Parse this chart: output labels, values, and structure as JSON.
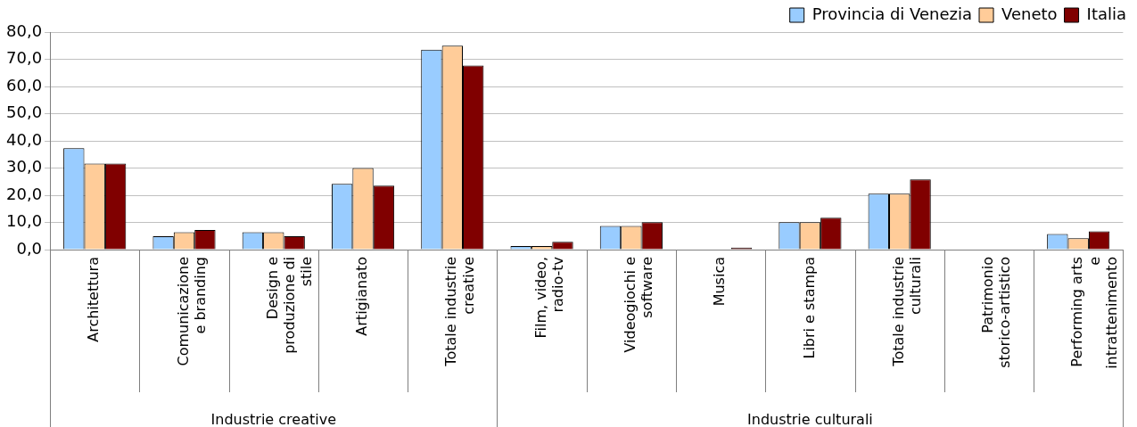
{
  "chart_data": {
    "type": "bar",
    "categories": [
      "Architettura",
      "Comunicazione e branding",
      "Design e produzione di stile",
      "Artigianato",
      "Totale industrie creative",
      "Film, video, radio-tv",
      "Videogiochi e software",
      "Musica",
      "Libri e stampa",
      "Totale industrie culturali",
      "Patrimonio storico-artistico",
      "Performing arts e intrattenimento"
    ],
    "series": [
      {
        "name": "Provincia di Venezia",
        "color": "#99ccff",
        "values": [
          37.3,
          4.9,
          6.4,
          24.2,
          73.5,
          1.3,
          8.7,
          0,
          10.1,
          20.6,
          0,
          5.7
        ]
      },
      {
        "name": "Veneto",
        "color": "#ffcc99",
        "values": [
          31.6,
          6.4,
          6.4,
          30.0,
          75.0,
          1.3,
          8.7,
          0,
          10.1,
          20.6,
          0,
          4.2
        ]
      },
      {
        "name": "Italia",
        "color": "#800000",
        "values": [
          31.6,
          7.2,
          4.9,
          23.5,
          67.7,
          2.9,
          10.1,
          0.7,
          11.7,
          25.8,
          0,
          6.7
        ]
      }
    ],
    "ylim": [
      0,
      80
    ],
    "yticks": [
      {
        "value": 0,
        "label": "0,0"
      },
      {
        "value": 10,
        "label": "10,0"
      },
      {
        "value": 20,
        "label": "20,0"
      },
      {
        "value": 30,
        "label": "30,0"
      },
      {
        "value": 40,
        "label": "40,0"
      },
      {
        "value": 50,
        "label": "50,0"
      },
      {
        "value": 60,
        "label": "60,0"
      },
      {
        "value": 70,
        "label": "70,0"
      },
      {
        "value": 80,
        "label": "80,0"
      }
    ],
    "grid": "y",
    "legend": "top right",
    "annotations": [
      "Industrie creative",
      "Industrie culturali"
    ]
  }
}
